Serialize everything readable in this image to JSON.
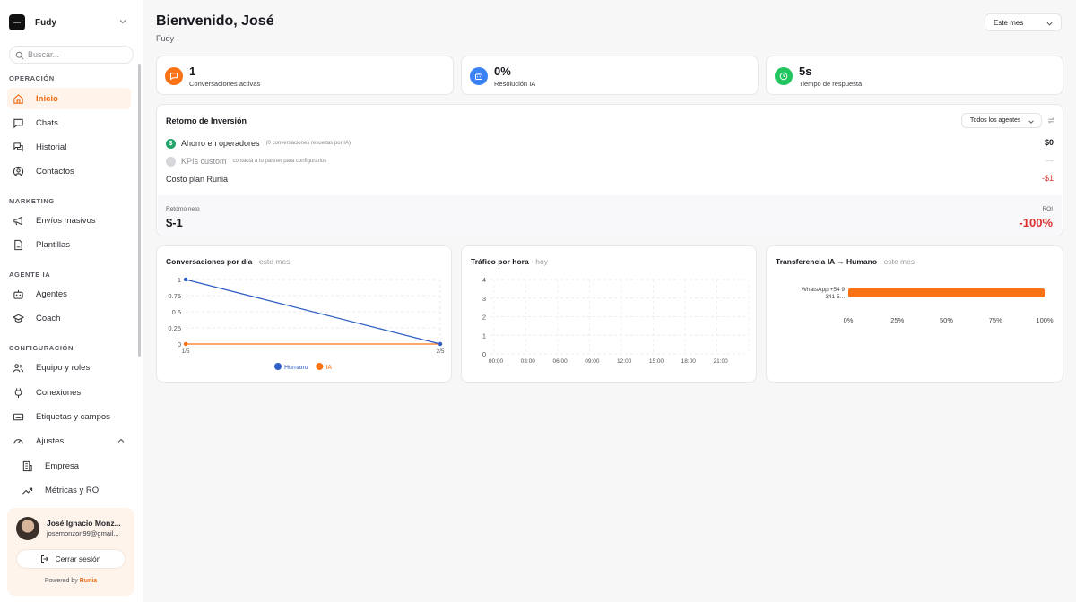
{
  "sidebar": {
    "brand": "Fudy",
    "search_placeholder": "Buscar...",
    "sections": {
      "operacion": "OPERACIÓN",
      "marketing": "MARKETING",
      "agente": "AGENTE IA",
      "config": "CONFIGURACIÓN"
    },
    "items": {
      "inicio": "Inicio",
      "chats": "Chats",
      "historial": "Historial",
      "contactos": "Contactos",
      "envios": "Envíos masivos",
      "plantillas": "Plantillas",
      "agentes": "Agentes",
      "coach": "Coach",
      "equipo": "Equipo y roles",
      "conexiones": "Conexiones",
      "etiquetas": "Etiquetas y campos",
      "ajustes": "Ajustes",
      "empresa": "Empresa",
      "metricas": "Métricas y ROI"
    },
    "active": "inicio",
    "user": {
      "name": "José Ignacio Monz...",
      "email": "josemonzon99@gmail...",
      "logout": "Cerrar sesión"
    },
    "powered_prefix": "Powered by",
    "powered_brand": "Runia"
  },
  "header": {
    "title": "Bienvenido, José",
    "subtitle": "Fudy",
    "period": "Este mes"
  },
  "kpis": [
    {
      "value": "1",
      "label": "Conversaciones activas",
      "color": "#f97316",
      "icon": "chat-icon"
    },
    {
      "value": "0%",
      "label": "Resolución IA",
      "color": "#3b82f6",
      "icon": "bot-icon"
    },
    {
      "value": "5s",
      "label": "Tiempo de respuesta",
      "color": "#22c55e",
      "icon": "clock-icon"
    }
  ],
  "roi": {
    "title": "Retorno de Inversión",
    "agent_filter": "Todos los agentes",
    "rows": {
      "ahorro_label": "Ahorro en operadores",
      "ahorro_hint": "(0 conversaciones resueltas por IA)",
      "ahorro_value": "$0",
      "kpis_label": "KPIs custom",
      "kpis_hint": "contactá a tu partner para configurarlos",
      "kpis_value": "—",
      "costo_label": "Costo plan Runia",
      "costo_value": "-$1"
    },
    "net_label": "Retorno neto",
    "net_value": "$-1",
    "roi_label": "ROI",
    "roi_value": "-100%"
  },
  "charts": {
    "conversaciones": {
      "title": "Conversaciones por día",
      "subtitle": "· este mes"
    },
    "trafico": {
      "title": "Tráfico por hora",
      "subtitle": "· hoy"
    },
    "transferencia": {
      "title": "Transferencia IA → Humano",
      "subtitle": "· este mes"
    }
  },
  "chart_data": [
    {
      "type": "line",
      "x": [
        "1/5",
        "2/5"
      ],
      "yticks": [
        "1",
        "0.75",
        "0.5",
        "0.25",
        "0"
      ],
      "ylim": [
        0,
        1
      ],
      "series": [
        {
          "name": "Humano",
          "values": [
            1,
            0
          ],
          "color": "#2f5fc4"
        },
        {
          "name": "IA",
          "values": [
            0,
            0
          ],
          "color": "#f97316"
        }
      ],
      "legend": "bottom",
      "grid": true
    },
    {
      "type": "bar",
      "categories": [
        "00:00",
        "03:00",
        "06:00",
        "09:00",
        "12:00",
        "15:00",
        "18:00",
        "21:00"
      ],
      "yticks": [
        "4",
        "3",
        "2",
        "1",
        "0"
      ],
      "ylim": [
        0,
        4
      ],
      "values": [
        0,
        0,
        0,
        0,
        0,
        0,
        0,
        0
      ],
      "grid": true
    },
    {
      "type": "bar",
      "orientation": "horizontal",
      "categories": [
        "WhatsApp +54 9 341 5..."
      ],
      "values": [
        100
      ],
      "xticks": [
        "0%",
        "25%",
        "50%",
        "75%",
        "100%"
      ],
      "xlim": [
        0,
        100
      ],
      "color": "#f97316"
    }
  ]
}
